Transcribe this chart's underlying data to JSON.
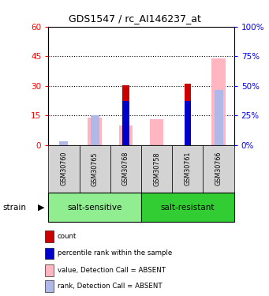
{
  "title": "GDS1547 / rc_AI146237_at",
  "samples": [
    "GSM30760",
    "GSM30765",
    "GSM30768",
    "GSM30758",
    "GSM30761",
    "GSM30766"
  ],
  "groups": [
    {
      "name": "salt-sensitive",
      "indices": [
        0,
        1,
        2
      ],
      "color": "#90EE90"
    },
    {
      "name": "salt-resistant",
      "indices": [
        3,
        4,
        5
      ],
      "color": "#32CD32"
    }
  ],
  "left_ylim": [
    0,
    60
  ],
  "left_yticks": [
    0,
    15,
    30,
    45,
    60
  ],
  "right_ylim": [
    0,
    100
  ],
  "right_yticks": [
    0,
    25,
    50,
    75,
    100
  ],
  "left_tick_labels": [
    "0",
    "15",
    "30",
    "45",
    "60"
  ],
  "right_tick_labels": [
    "0%",
    "25%",
    "50%",
    "75%",
    "100%"
  ],
  "red_bars": [
    0,
    0,
    30.5,
    0,
    31,
    0
  ],
  "blue_bars": [
    0,
    0,
    22.5,
    0,
    22.5,
    0
  ],
  "pink_bars": [
    0,
    14,
    10,
    13,
    0,
    44
  ],
  "lavender_bars": [
    2,
    15,
    0,
    0,
    0,
    28
  ],
  "red_color": "#CC0000",
  "blue_color": "#0000CC",
  "pink_color": "#FFB6C1",
  "lavender_color": "#B0B8E8",
  "sample_box_color": "#D3D3D3",
  "dotted_lines": [
    15,
    30,
    45
  ],
  "legend_items": [
    {
      "label": "count",
      "color": "#CC0000"
    },
    {
      "label": "percentile rank within the sample",
      "color": "#0000CC"
    },
    {
      "label": "value, Detection Call = ABSENT",
      "color": "#FFB6C1"
    },
    {
      "label": "rank, Detection Call = ABSENT",
      "color": "#B0B8E8"
    }
  ]
}
